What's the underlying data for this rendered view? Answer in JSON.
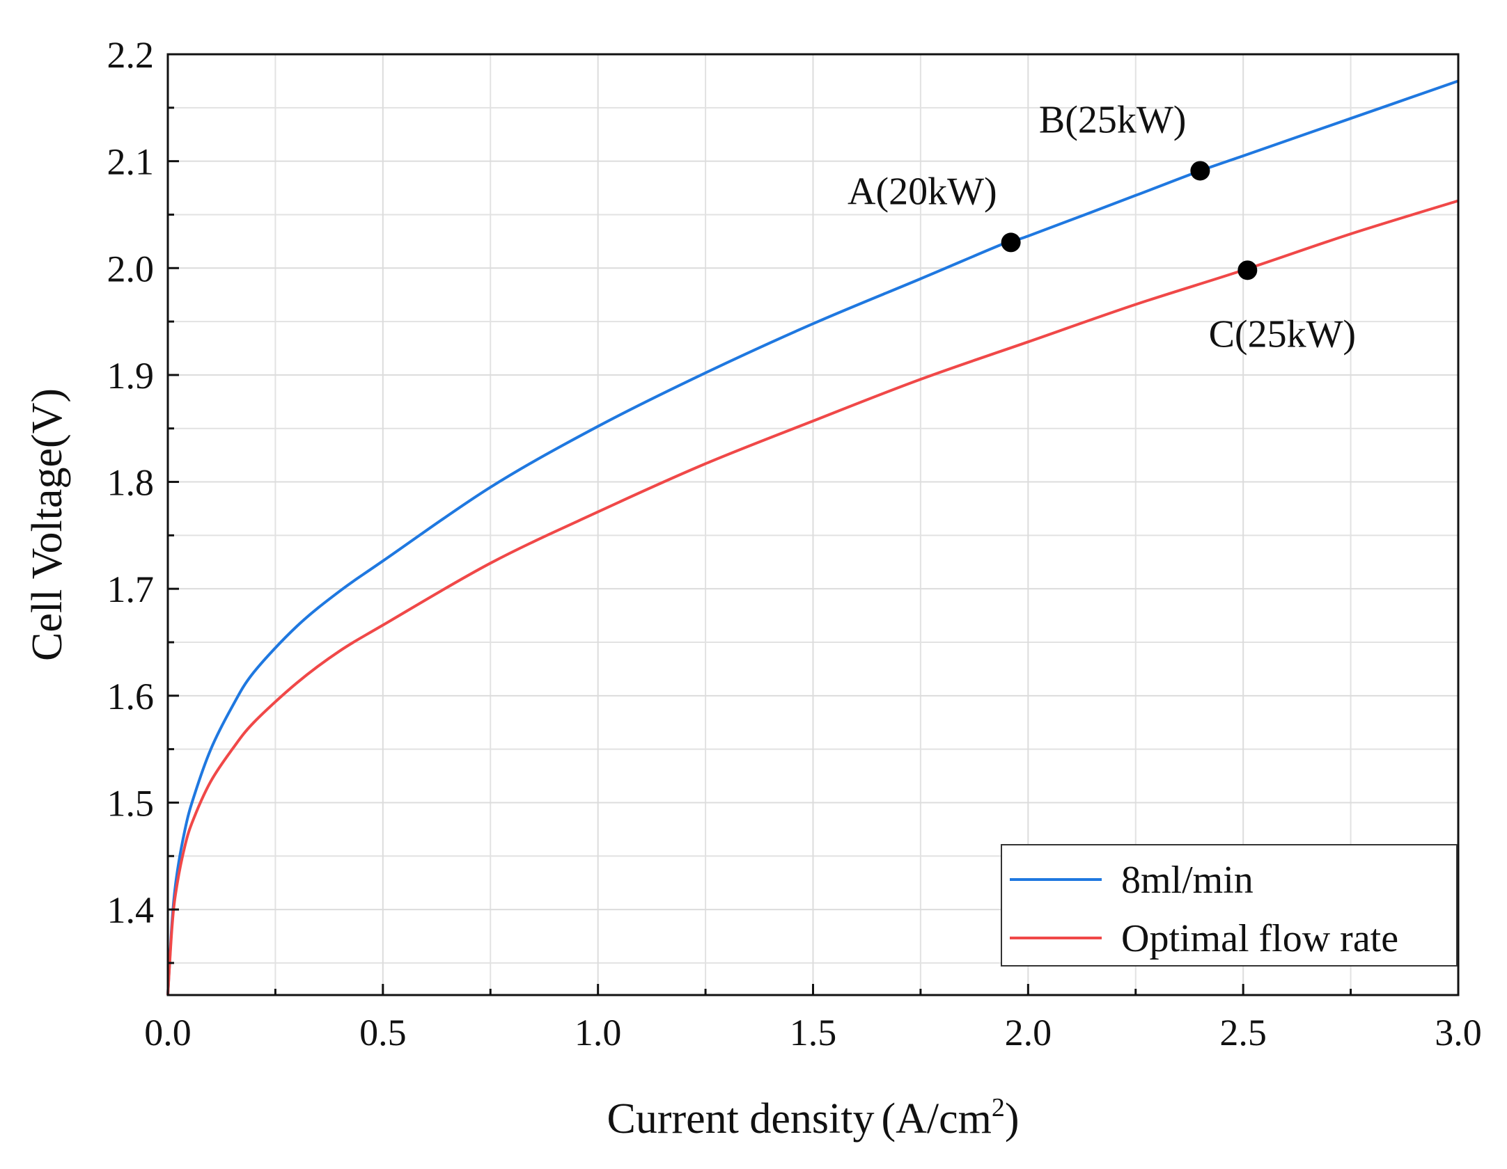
{
  "chart_data": {
    "type": "line",
    "title": "",
    "xlabel": "Current density",
    "xlabel_unit": "(A/cm",
    "xlabel_unit_sup": "2",
    "xlabel_unit_close": ")",
    "ylabel": "Cell Voltage(V)",
    "xlim": [
      0,
      3.0
    ],
    "ylim": [
      1.32,
      2.2
    ],
    "x_ticks": [
      0.0,
      0.5,
      1.0,
      1.5,
      2.0,
      2.5,
      3.0
    ],
    "x_tick_labels": [
      "0.0",
      "0.5",
      "1.0",
      "1.5",
      "2.0",
      "2.5",
      "3.0"
    ],
    "y_ticks": [
      1.4,
      1.5,
      1.6,
      1.7,
      1.8,
      1.9,
      2.0,
      2.1,
      2.2
    ],
    "y_tick_labels": [
      "1.4",
      "1.5",
      "1.6",
      "1.7",
      "1.8",
      "1.9",
      "2.0",
      "2.1",
      "2.2"
    ],
    "grid": true,
    "legend_position": "bottom-right",
    "series": [
      {
        "name": "8ml/min",
        "color": "#1f78e0",
        "x": [
          0.0,
          0.01,
          0.02,
          0.04,
          0.06,
          0.1,
          0.15,
          0.2,
          0.3,
          0.4,
          0.5,
          0.75,
          1.0,
          1.25,
          1.5,
          1.75,
          1.95,
          2.0,
          2.25,
          2.4,
          2.5,
          2.75,
          3.0
        ],
        "values": [
          1.32,
          1.39,
          1.43,
          1.475,
          1.505,
          1.55,
          1.59,
          1.622,
          1.665,
          1.698,
          1.726,
          1.795,
          1.852,
          1.902,
          1.948,
          1.99,
          2.024,
          2.03,
          2.068,
          2.091,
          2.105,
          2.14,
          2.175
        ]
      },
      {
        "name": "Optimal flow rate",
        "color": "#f04848",
        "x": [
          0.0,
          0.01,
          0.02,
          0.04,
          0.06,
          0.1,
          0.15,
          0.2,
          0.3,
          0.4,
          0.5,
          0.75,
          1.0,
          1.25,
          1.5,
          1.75,
          2.0,
          2.25,
          2.5,
          2.75,
          3.0
        ],
        "values": [
          1.32,
          1.385,
          1.42,
          1.46,
          1.485,
          1.52,
          1.55,
          1.575,
          1.612,
          1.642,
          1.666,
          1.724,
          1.772,
          1.817,
          1.857,
          1.896,
          1.931,
          1.966,
          1.998,
          2.032,
          2.063
        ]
      }
    ],
    "points": [
      {
        "label": "A(20kW)",
        "x": 1.96,
        "y": 2.024,
        "label_side": "above-left"
      },
      {
        "label": "B(25kW)",
        "x": 2.4,
        "y": 2.091,
        "label_side": "above-left"
      },
      {
        "label": "C(25kW)",
        "x": 2.51,
        "y": 1.998,
        "label_side": "below"
      }
    ]
  }
}
